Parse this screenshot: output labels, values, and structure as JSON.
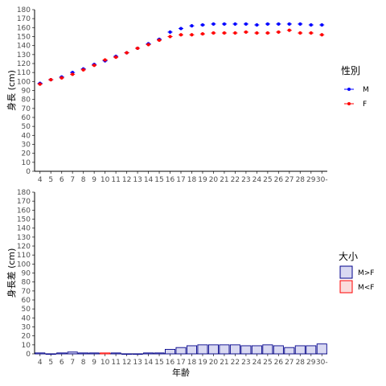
{
  "chart_data": [
    {
      "type": "scatter",
      "ylabel": "身長 (cm)",
      "ylim": [
        0,
        180
      ],
      "ytick_step": 10,
      "categories": [
        "4",
        "5",
        "6",
        "7",
        "8",
        "9",
        "10",
        "11",
        "12",
        "13",
        "14",
        "15",
        "16",
        "17",
        "18",
        "19",
        "20",
        "21",
        "22",
        "23",
        "24",
        "25",
        "26",
        "27",
        "28",
        "29",
        "30-"
      ],
      "series": [
        {
          "name": "M",
          "color": "#0000ff",
          "values": [
            98,
            102,
            105,
            110,
            114,
            119,
            123,
            128,
            132,
            137,
            142,
            147,
            155,
            159,
            162,
            163,
            164,
            164,
            164,
            164,
            163,
            164,
            164,
            164,
            164,
            163,
            163
          ]
        },
        {
          "name": "F",
          "color": "#ff0000",
          "values": [
            97,
            102,
            104,
            108,
            113,
            118,
            124,
            127,
            132,
            137,
            141,
            146,
            150,
            152,
            152,
            153,
            154,
            154,
            154,
            155,
            154,
            154,
            155,
            157,
            154,
            154,
            152
          ]
        }
      ],
      "legend": {
        "title": "性別",
        "position": "right",
        "entries": [
          "M",
          "F"
        ]
      }
    },
    {
      "type": "bar",
      "xlabel": "年齢",
      "ylabel": "身長差 (cm)",
      "ylim": [
        0,
        180
      ],
      "ytick_step": 10,
      "categories": [
        "4",
        "5",
        "6",
        "7",
        "8",
        "9",
        "10",
        "11",
        "12",
        "13",
        "14",
        "15",
        "16",
        "17",
        "18",
        "19",
        "20",
        "21",
        "22",
        "23",
        "24",
        "25",
        "26",
        "27",
        "28",
        "29",
        "30-"
      ],
      "values": [
        1,
        0,
        1,
        2,
        1,
        1,
        1,
        1,
        0,
        0,
        1,
        1,
        5,
        7,
        9,
        10,
        10,
        10,
        10,
        9,
        9,
        10,
        9,
        7,
        9,
        9,
        11
      ],
      "groups": [
        "M>F",
        "M>F",
        "M>F",
        "M>F",
        "M>F",
        "M>F",
        "M<F",
        "M>F",
        "M>F",
        "M>F",
        "M>F",
        "M>F",
        "M>F",
        "M>F",
        "M>F",
        "M>F",
        "M>F",
        "M>F",
        "M>F",
        "M>F",
        "M>F",
        "M>F",
        "M>F",
        "M>F",
        "M>F",
        "M>F",
        "M>F"
      ],
      "legend": {
        "title": "大小",
        "position": "right",
        "entries": [
          {
            "label": "M>F",
            "fill": "#d9d9f2",
            "stroke": "#00008b"
          },
          {
            "label": "M<F",
            "fill": "#fadcdc",
            "stroke": "#ff0000"
          }
        ]
      }
    }
  ]
}
